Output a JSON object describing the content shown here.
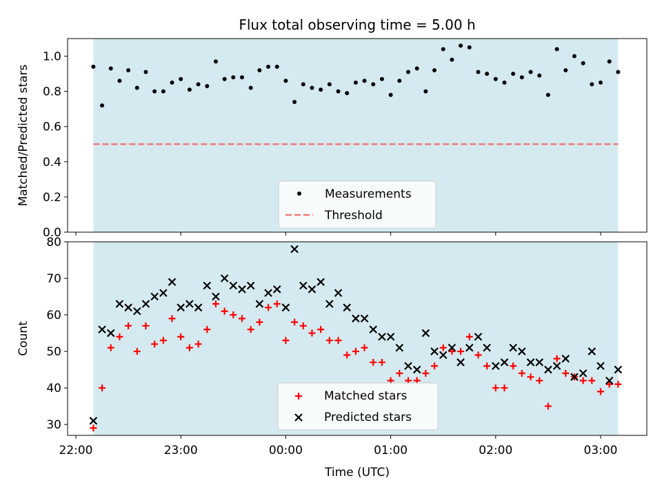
{
  "chart_data": [
    {
      "type": "scatter",
      "title": "Flux total observing time = 5.00 h",
      "xlabel": "",
      "ylabel": "Matched/Predicted stars",
      "ylim": [
        0.0,
        1.1
      ],
      "xlim": [
        "21:55",
        "03:25"
      ],
      "yticks": [
        "0.0",
        "0.2",
        "0.4",
        "0.6",
        "0.8",
        "1.0"
      ],
      "shaded_region": {
        "from": "22:10",
        "to": "03:10",
        "color": "#d4eaf0"
      },
      "legend_position": "lower center",
      "series": [
        {
          "name": "Measurements",
          "marker": "dot",
          "color": "#000000",
          "points": [
            [
              "22:10",
              0.94
            ],
            [
              "22:15",
              0.72
            ],
            [
              "22:20",
              0.93
            ],
            [
              "22:25",
              0.86
            ],
            [
              "22:30",
              0.92
            ],
            [
              "22:35",
              0.82
            ],
            [
              "22:40",
              0.91
            ],
            [
              "22:45",
              0.8
            ],
            [
              "22:50",
              0.8
            ],
            [
              "22:55",
              0.85
            ],
            [
              "23:00",
              0.87
            ],
            [
              "23:05",
              0.81
            ],
            [
              "23:10",
              0.84
            ],
            [
              "23:15",
              0.83
            ],
            [
              "23:20",
              0.97
            ],
            [
              "23:25",
              0.87
            ],
            [
              "23:30",
              0.88
            ],
            [
              "23:35",
              0.88
            ],
            [
              "23:40",
              0.82
            ],
            [
              "23:45",
              0.92
            ],
            [
              "23:50",
              0.94
            ],
            [
              "23:55",
              0.94
            ],
            [
              "00:00",
              0.86
            ],
            [
              "00:05",
              0.74
            ],
            [
              "00:10",
              0.84
            ],
            [
              "00:15",
              0.82
            ],
            [
              "00:20",
              0.81
            ],
            [
              "00:25",
              0.84
            ],
            [
              "00:30",
              0.8
            ],
            [
              "00:35",
              0.79
            ],
            [
              "00:40",
              0.85
            ],
            [
              "00:45",
              0.86
            ],
            [
              "00:50",
              0.84
            ],
            [
              "00:55",
              0.87
            ],
            [
              "01:00",
              0.78
            ],
            [
              "01:05",
              0.86
            ],
            [
              "01:10",
              0.91
            ],
            [
              "01:15",
              0.93
            ],
            [
              "01:20",
              0.8
            ],
            [
              "01:25",
              0.92
            ],
            [
              "01:30",
              1.04
            ],
            [
              "01:35",
              0.98
            ],
            [
              "01:40",
              1.06
            ],
            [
              "01:45",
              1.05
            ],
            [
              "01:50",
              0.91
            ],
            [
              "01:55",
              0.9
            ],
            [
              "02:00",
              0.87
            ],
            [
              "02:05",
              0.85
            ],
            [
              "02:10",
              0.9
            ],
            [
              "02:15",
              0.88
            ],
            [
              "02:20",
              0.91
            ],
            [
              "02:25",
              0.89
            ],
            [
              "02:30",
              0.78
            ],
            [
              "02:35",
              1.04
            ],
            [
              "02:40",
              0.92
            ],
            [
              "02:45",
              1.0
            ],
            [
              "02:50",
              0.96
            ],
            [
              "02:55",
              0.84
            ],
            [
              "03:00",
              0.85
            ],
            [
              "03:05",
              0.97
            ],
            [
              "03:10",
              0.91
            ]
          ]
        },
        {
          "name": "Threshold",
          "line": "dashed",
          "color": "#f07070",
          "y": 0.5,
          "x_range": [
            "22:10",
            "03:10"
          ]
        }
      ]
    },
    {
      "type": "scatter",
      "title": "",
      "xlabel": "Time (UTC)",
      "ylabel": "Count",
      "ylim": [
        27,
        80
      ],
      "xlim": [
        "21:55",
        "03:25"
      ],
      "yticks": [
        "30",
        "40",
        "50",
        "60",
        "70",
        "80"
      ],
      "xticks": [
        "22:00",
        "23:00",
        "00:00",
        "01:00",
        "02:00",
        "03:00"
      ],
      "shaded_region": {
        "from": "22:10",
        "to": "03:10",
        "color": "#d4eaf0"
      },
      "legend_position": "lower center",
      "series": [
        {
          "name": "Matched stars",
          "marker": "plus",
          "color": "#ff0000",
          "points": [
            [
              "22:10",
              29
            ],
            [
              "22:15",
              40
            ],
            [
              "22:20",
              51
            ],
            [
              "22:25",
              54
            ],
            [
              "22:30",
              57
            ],
            [
              "22:35",
              50
            ],
            [
              "22:40",
              57
            ],
            [
              "22:45",
              52
            ],
            [
              "22:50",
              53
            ],
            [
              "22:55",
              59
            ],
            [
              "23:00",
              54
            ],
            [
              "23:05",
              51
            ],
            [
              "23:10",
              52
            ],
            [
              "23:15",
              56
            ],
            [
              "23:20",
              63
            ],
            [
              "23:25",
              61
            ],
            [
              "23:30",
              60
            ],
            [
              "23:35",
              59
            ],
            [
              "23:40",
              56
            ],
            [
              "23:45",
              58
            ],
            [
              "23:50",
              62
            ],
            [
              "23:55",
              63
            ],
            [
              "00:00",
              53
            ],
            [
              "00:05",
              58
            ],
            [
              "00:10",
              57
            ],
            [
              "00:15",
              55
            ],
            [
              "00:20",
              56
            ],
            [
              "00:25",
              53
            ],
            [
              "00:30",
              53
            ],
            [
              "00:35",
              49
            ],
            [
              "00:40",
              50
            ],
            [
              "00:45",
              51
            ],
            [
              "00:50",
              47
            ],
            [
              "00:55",
              47
            ],
            [
              "01:00",
              42
            ],
            [
              "01:05",
              44
            ],
            [
              "01:10",
              42
            ],
            [
              "01:15",
              42
            ],
            [
              "01:20",
              44
            ],
            [
              "01:25",
              46
            ],
            [
              "01:30",
              51
            ],
            [
              "01:35",
              50
            ],
            [
              "01:40",
              50
            ],
            [
              "01:45",
              54
            ],
            [
              "01:50",
              49
            ],
            [
              "01:55",
              46
            ],
            [
              "02:00",
              40
            ],
            [
              "02:05",
              40
            ],
            [
              "02:10",
              46
            ],
            [
              "02:15",
              44
            ],
            [
              "02:20",
              43
            ],
            [
              "02:25",
              42
            ],
            [
              "02:30",
              35
            ],
            [
              "02:35",
              48
            ],
            [
              "02:40",
              44
            ],
            [
              "02:45",
              43
            ],
            [
              "02:50",
              42
            ],
            [
              "02:55",
              42
            ],
            [
              "03:00",
              39
            ],
            [
              "03:05",
              41
            ],
            [
              "03:10",
              41
            ]
          ]
        },
        {
          "name": "Predicted stars",
          "marker": "x",
          "color": "#000000",
          "points": [
            [
              "22:10",
              31
            ],
            [
              "22:15",
              56
            ],
            [
              "22:20",
              55
            ],
            [
              "22:25",
              63
            ],
            [
              "22:30",
              62
            ],
            [
              "22:35",
              61
            ],
            [
              "22:40",
              63
            ],
            [
              "22:45",
              65
            ],
            [
              "22:50",
              66
            ],
            [
              "22:55",
              69
            ],
            [
              "23:00",
              62
            ],
            [
              "23:05",
              63
            ],
            [
              "23:10",
              62
            ],
            [
              "23:15",
              68
            ],
            [
              "23:20",
              65
            ],
            [
              "23:25",
              70
            ],
            [
              "23:30",
              68
            ],
            [
              "23:35",
              67
            ],
            [
              "23:40",
              68
            ],
            [
              "23:45",
              63
            ],
            [
              "23:50",
              66
            ],
            [
              "23:55",
              67
            ],
            [
              "00:00",
              62
            ],
            [
              "00:05",
              78
            ],
            [
              "00:10",
              68
            ],
            [
              "00:15",
              67
            ],
            [
              "00:20",
              69
            ],
            [
              "00:25",
              63
            ],
            [
              "00:30",
              66
            ],
            [
              "00:35",
              62
            ],
            [
              "00:40",
              59
            ],
            [
              "00:45",
              59
            ],
            [
              "00:50",
              56
            ],
            [
              "00:55",
              54
            ],
            [
              "01:00",
              54
            ],
            [
              "01:05",
              51
            ],
            [
              "01:10",
              46
            ],
            [
              "01:15",
              45
            ],
            [
              "01:20",
              55
            ],
            [
              "01:25",
              50
            ],
            [
              "01:30",
              49
            ],
            [
              "01:35",
              51
            ],
            [
              "01:40",
              47
            ],
            [
              "01:45",
              51
            ],
            [
              "01:50",
              54
            ],
            [
              "01:55",
              51
            ],
            [
              "02:00",
              46
            ],
            [
              "02:05",
              47
            ],
            [
              "02:10",
              51
            ],
            [
              "02:15",
              50
            ],
            [
              "02:20",
              47
            ],
            [
              "02:25",
              47
            ],
            [
              "02:30",
              45
            ],
            [
              "02:35",
              46
            ],
            [
              "02:40",
              48
            ],
            [
              "02:45",
              43
            ],
            [
              "02:50",
              44
            ],
            [
              "02:55",
              50
            ],
            [
              "03:00",
              46
            ],
            [
              "03:05",
              42
            ],
            [
              "03:10",
              45
            ]
          ]
        }
      ]
    }
  ]
}
